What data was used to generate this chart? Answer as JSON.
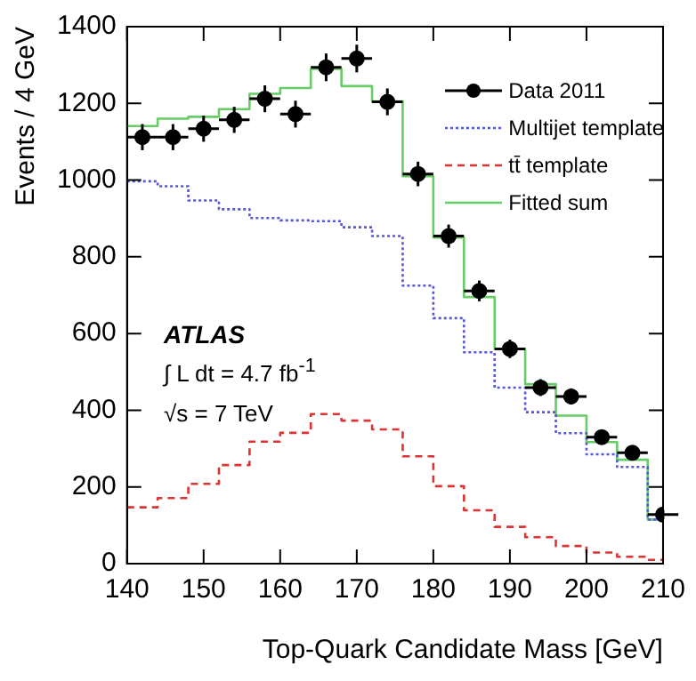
{
  "chart_data": {
    "type": "step",
    "xlabel": "Top-Quark Candidate Mass [GeV]",
    "ylabel": "Events / 4 GeV",
    "x": [
      140,
      144,
      148,
      152,
      156,
      160,
      164,
      168,
      172,
      176,
      180,
      184,
      188,
      192,
      196,
      200,
      204,
      208
    ],
    "xlim": [
      140,
      210
    ],
    "xticks": [
      140,
      150,
      160,
      170,
      180,
      190,
      200,
      210
    ],
    "ylim": [
      0,
      1400
    ],
    "yticks": [
      0,
      200,
      400,
      600,
      800,
      1000,
      1200,
      1400
    ],
    "grid": false,
    "legend": "top right",
    "series": [
      {
        "name": "Data 2011",
        "type": "scatter",
        "x": [
          142,
          146,
          150,
          154,
          158,
          162,
          166,
          170,
          174,
          178,
          182,
          186,
          190,
          194,
          198,
          202,
          206,
          210
        ],
        "marker": "circle",
        "color": "#000000",
        "values": [
          1112,
          1112,
          1134,
          1157,
          1212,
          1172,
          1294,
          1317,
          1204,
          1016,
          854,
          711,
          560,
          459,
          436,
          330,
          289,
          128
        ],
        "errors": [
          34,
          34,
          34,
          34,
          35,
          35,
          36,
          36,
          35,
          32,
          30,
          27,
          24,
          22,
          21,
          19,
          17,
          12
        ],
        "xerrors": [
          2,
          2,
          2,
          2,
          2,
          2,
          2,
          2,
          2,
          2,
          2,
          2,
          2,
          2,
          2,
          2,
          2,
          2
        ]
      },
      {
        "name": "Multijet template",
        "line_style": "dotted",
        "color": "#5555dd",
        "values": [
          997,
          984,
          947,
          924,
          901,
          895,
          893,
          877,
          854,
          725,
          640,
          551,
          459,
          395,
          340,
          285,
          252,
          115
        ]
      },
      {
        "name": "tt̄ template",
        "line_style": "dashed",
        "color": "#dd3333",
        "values": [
          147,
          171,
          208,
          257,
          318,
          341,
          390,
          373,
          350,
          280,
          202,
          139,
          96,
          69,
          46,
          29,
          18,
          10
        ]
      },
      {
        "name": "Fitted sum",
        "line_style": "solid",
        "color": "#66cc66",
        "values": [
          1141,
          1160,
          1165,
          1185,
          1225,
          1240,
          1290,
          1245,
          1205,
          1010,
          850,
          695,
          560,
          468,
          386,
          317,
          271,
          115
        ]
      }
    ],
    "annotations": [
      "ATLAS",
      "∫ L dt = 4.7 fb$^{-1}$",
      "√s = 7 TeV"
    ]
  }
}
